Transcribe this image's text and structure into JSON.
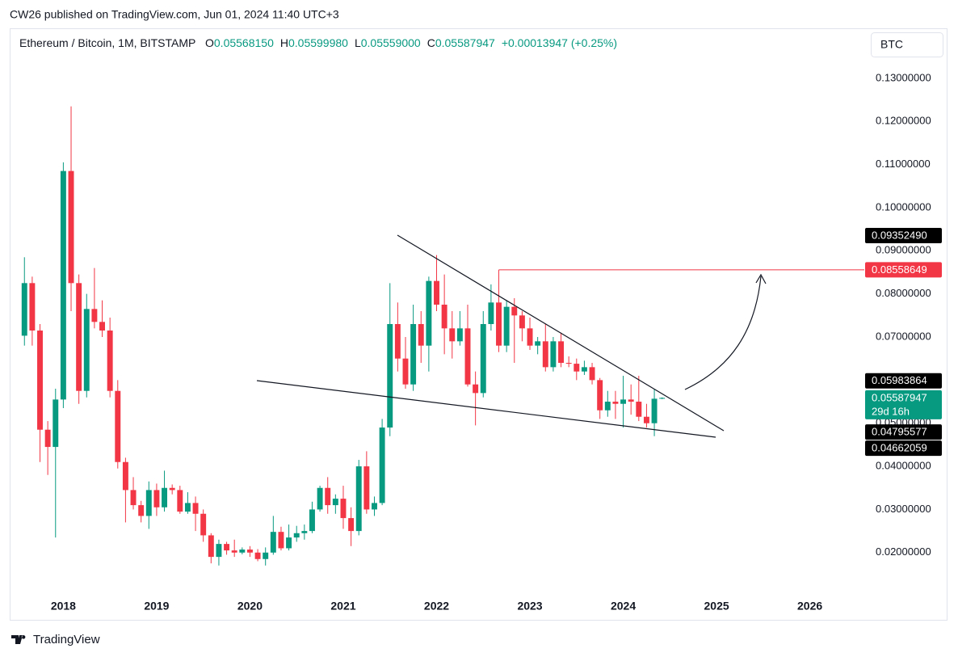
{
  "header": {
    "published": "CW26 published on TradingView.com, Jun 01, 2024 11:40 UTC+3",
    "symbol": "Ethereum / Bitcoin, 1M, BITSTAMP",
    "ohlc": [
      {
        "key": "O",
        "label": "0.05568150"
      },
      {
        "key": "H",
        "label": "0.05599980"
      },
      {
        "key": "L",
        "label": "0.05559000"
      },
      {
        "key": "C",
        "label": "0.05587947"
      }
    ],
    "change": "+0.00013947 (+0.25%)",
    "currency": "BTC",
    "brand": "TradingView"
  },
  "chart_data": {
    "type": "candlestick",
    "x": [
      "2017-08",
      "2017-09",
      "2017-10",
      "2017-11",
      "2017-12",
      "2018-01",
      "2018-02",
      "2018-03",
      "2018-04",
      "2018-05",
      "2018-06",
      "2018-07",
      "2018-08",
      "2018-09",
      "2018-10",
      "2018-11",
      "2018-12",
      "2019-01",
      "2019-02",
      "2019-03",
      "2019-04",
      "2019-05",
      "2019-06",
      "2019-07",
      "2019-08",
      "2019-09",
      "2019-10",
      "2019-11",
      "2019-12",
      "2020-01",
      "2020-02",
      "2020-03",
      "2020-04",
      "2020-05",
      "2020-06",
      "2020-07",
      "2020-08",
      "2020-09",
      "2020-10",
      "2020-11",
      "2020-12",
      "2021-01",
      "2021-02",
      "2021-03",
      "2021-04",
      "2021-05",
      "2021-06",
      "2021-07",
      "2021-08",
      "2021-09",
      "2021-10",
      "2021-11",
      "2021-12",
      "2022-01",
      "2022-02",
      "2022-03",
      "2022-04",
      "2022-05",
      "2022-06",
      "2022-07",
      "2022-08",
      "2022-09",
      "2022-10",
      "2022-11",
      "2022-12",
      "2023-01",
      "2023-02",
      "2023-03",
      "2023-04",
      "2023-05",
      "2023-06",
      "2023-07",
      "2023-08",
      "2023-09",
      "2023-10",
      "2023-11",
      "2023-12",
      "2024-01",
      "2024-02",
      "2024-03",
      "2024-04",
      "2024-05",
      "2024-06"
    ],
    "open": [
      0.0703,
      0.0825,
      0.0715,
      0.0485,
      0.0445,
      0.0555,
      0.1085,
      0.0825,
      0.0575,
      0.0765,
      0.0735,
      0.0715,
      0.0575,
      0.041,
      0.0345,
      0.031,
      0.0285,
      0.0345,
      0.0305,
      0.035,
      0.0345,
      0.0295,
      0.0315,
      0.029,
      0.024,
      0.019,
      0.022,
      0.0205,
      0.02,
      0.0207,
      0.02,
      0.0185,
      0.02,
      0.0248,
      0.021,
      0.0235,
      0.0245,
      0.025,
      0.03,
      0.035,
      0.031,
      0.0325,
      0.028,
      0.025,
      0.04,
      0.03,
      0.0315,
      0.049,
      0.073,
      0.065,
      0.059,
      0.073,
      0.068,
      0.083,
      0.0775,
      0.072,
      0.069,
      0.072,
      0.059,
      0.057,
      0.073,
      0.078,
      0.068,
      0.077,
      0.075,
      0.072,
      0.068,
      0.069,
      0.063,
      0.069,
      0.064,
      0.0638,
      0.062,
      0.063,
      0.06,
      0.053,
      0.055,
      0.0545,
      0.0555,
      0.055,
      0.0515,
      0.05,
      0.0556815
    ],
    "high": [
      0.0885,
      0.084,
      0.073,
      0.0505,
      0.058,
      0.1105,
      0.1235,
      0.0845,
      0.08,
      0.086,
      0.0785,
      0.0745,
      0.06,
      0.042,
      0.0375,
      0.032,
      0.0365,
      0.036,
      0.039,
      0.0358,
      0.0355,
      0.034,
      0.033,
      0.03,
      0.0245,
      0.023,
      0.0225,
      0.023,
      0.0212,
      0.0215,
      0.0208,
      0.0212,
      0.0285,
      0.026,
      0.0265,
      0.0262,
      0.0265,
      0.0318,
      0.0355,
      0.0375,
      0.0335,
      0.0355,
      0.0305,
      0.0415,
      0.0435,
      0.033,
      0.051,
      0.0825,
      0.078,
      0.07,
      0.0775,
      0.076,
      0.084,
      0.089,
      0.0845,
      0.076,
      0.076,
      0.0775,
      0.062,
      0.076,
      0.0822,
      0.08558649,
      0.0785,
      0.079,
      0.076,
      0.0745,
      0.07,
      0.073,
      0.07,
      0.071,
      0.0655,
      0.065,
      0.0645,
      0.064,
      0.0605,
      0.0575,
      0.0575,
      0.061,
      0.059,
      0.061,
      0.0545,
      0.058,
      0.0559998
    ],
    "low": [
      0.068,
      0.068,
      0.041,
      0.038,
      0.0235,
      0.0535,
      0.076,
      0.0545,
      0.056,
      0.072,
      0.07,
      0.056,
      0.0395,
      0.027,
      0.03,
      0.027,
      0.0255,
      0.0285,
      0.0295,
      0.0335,
      0.029,
      0.029,
      0.025,
      0.0225,
      0.0175,
      0.017,
      0.0195,
      0.019,
      0.0196,
      0.019,
      0.018,
      0.017,
      0.0195,
      0.0205,
      0.0205,
      0.0225,
      0.023,
      0.0245,
      0.0295,
      0.029,
      0.029,
      0.0255,
      0.0215,
      0.024,
      0.029,
      0.0285,
      0.031,
      0.047,
      0.062,
      0.058,
      0.0575,
      0.064,
      0.062,
      0.076,
      0.066,
      0.065,
      0.068,
      0.0585,
      0.0495,
      0.056,
      0.0715,
      0.0665,
      0.0665,
      0.064,
      0.069,
      0.067,
      0.066,
      0.062,
      0.062,
      0.063,
      0.063,
      0.06,
      0.0612,
      0.059,
      0.051,
      0.0515,
      0.051,
      0.049,
      0.052,
      0.0505,
      0.049,
      0.047,
      0.05559
    ],
    "close": [
      0.0825,
      0.0715,
      0.0485,
      0.0445,
      0.0555,
      0.1085,
      0.0825,
      0.0575,
      0.0765,
      0.0735,
      0.0715,
      0.0575,
      0.041,
      0.0345,
      0.031,
      0.0285,
      0.0345,
      0.0305,
      0.035,
      0.0345,
      0.0295,
      0.0315,
      0.029,
      0.024,
      0.019,
      0.022,
      0.0205,
      0.02,
      0.0207,
      0.02,
      0.0185,
      0.02,
      0.0248,
      0.021,
      0.0235,
      0.0245,
      0.025,
      0.03,
      0.035,
      0.031,
      0.0325,
      0.028,
      0.025,
      0.04,
      0.03,
      0.0315,
      0.049,
      0.073,
      0.065,
      0.059,
      0.073,
      0.068,
      0.083,
      0.0775,
      0.072,
      0.069,
      0.072,
      0.059,
      0.057,
      0.073,
      0.078,
      0.068,
      0.077,
      0.075,
      0.072,
      0.068,
      0.069,
      0.063,
      0.069,
      0.064,
      0.0638,
      0.062,
      0.063,
      0.06,
      0.053,
      0.055,
      0.0545,
      0.0555,
      0.055,
      0.0515,
      0.05,
      0.0556815,
      0.05587947
    ],
    "up_color": "#089981",
    "down_color": "#f23645",
    "ylim": [
      0.0104,
      0.1416
    ],
    "yticks": [
      {
        "value": 0.02,
        "label": "0.02000000"
      },
      {
        "value": 0.03,
        "label": "0.03000000"
      },
      {
        "value": 0.04,
        "label": "0.04000000"
      },
      {
        "value": 0.05,
        "label": "0.05000000"
      },
      {
        "value": 0.06,
        "label": "0.06000000"
      },
      {
        "value": 0.07,
        "label": "0.07000000"
      },
      {
        "value": 0.08,
        "label": "0.08000000"
      },
      {
        "value": 0.09,
        "label": "0.09000000"
      },
      {
        "value": 0.1,
        "label": "0.10000000"
      },
      {
        "value": 0.11,
        "label": "0.11000000"
      },
      {
        "value": 0.12,
        "label": "0.12000000"
      },
      {
        "value": 0.13,
        "label": "0.13000000"
      }
    ],
    "xlim": [
      "2017-06",
      "2026-08"
    ],
    "xticks": [
      {
        "value": "2018-01",
        "label": "2018"
      },
      {
        "value": "2019-01",
        "label": "2019"
      },
      {
        "value": "2020-01",
        "label": "2020"
      },
      {
        "value": "2021-01",
        "label": "2021"
      },
      {
        "value": "2022-01",
        "label": "2022"
      },
      {
        "value": "2023-01",
        "label": "2023"
      },
      {
        "value": "2024-01",
        "label": "2024"
      },
      {
        "value": "2025-01",
        "label": "2025"
      },
      {
        "value": "2026-01",
        "label": "2026"
      }
    ],
    "price_labels": [
      {
        "value": 0.0935249,
        "label": "0.09352490",
        "color": "#000000"
      },
      {
        "value": 0.08558649,
        "label": "0.08558649",
        "color": "#f23645"
      },
      {
        "value": 0.05983864,
        "label": "0.05983864",
        "color": "#000000"
      },
      {
        "value": 0.05587947,
        "label": "0.05587947",
        "color": "#089981",
        "countdown": "29d 16h"
      },
      {
        "value": 0.04795577,
        "label": "0.04795577",
        "color": "#000000"
      },
      {
        "value": 0.04662059,
        "label": "0.04662059",
        "color": "#000000"
      }
    ]
  }
}
